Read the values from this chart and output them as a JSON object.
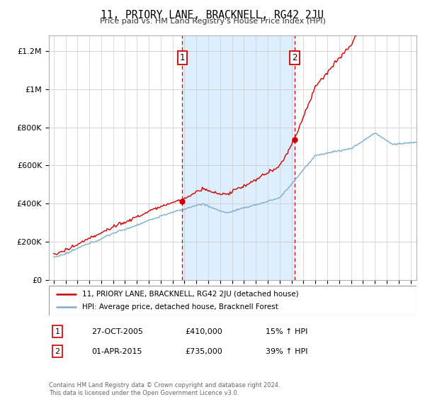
{
  "title": "11, PRIORY LANE, BRACKNELL, RG42 2JU",
  "subtitle": "Price paid vs. HM Land Registry's House Price Index (HPI)",
  "footer": "Contains HM Land Registry data © Crown copyright and database right 2024.\nThis data is licensed under the Open Government Licence v3.0.",
  "legend_line1": "11, PRIORY LANE, BRACKNELL, RG42 2JU (detached house)",
  "legend_line2": "HPI: Average price, detached house, Bracknell Forest",
  "transaction1_date": "27-OCT-2005",
  "transaction1_price": "£410,000",
  "transaction1_hpi": "15% ↑ HPI",
  "transaction1_year": 2005.82,
  "transaction1_value": 410000,
  "transaction2_date": "01-APR-2015",
  "transaction2_price": "£735,000",
  "transaction2_hpi": "39% ↑ HPI",
  "transaction2_year": 2015.25,
  "transaction2_value": 735000,
  "ylim": [
    0,
    1280000
  ],
  "yticks": [
    0,
    200000,
    400000,
    600000,
    800000,
    1000000,
    1200000
  ],
  "ytick_labels": [
    "£0",
    "£200K",
    "£400K",
    "£600K",
    "£800K",
    "£1M",
    "£1.2M"
  ],
  "red_color": "#cc0000",
  "blue_color": "#7aadcc",
  "shaded_color": "#ddeeff",
  "bg_color": "#ffffff",
  "grid_color": "#cccccc",
  "vline_color": "#cc0000",
  "box_color": "#cc0000",
  "xlim_left": 1994.6,
  "xlim_right": 2025.5
}
